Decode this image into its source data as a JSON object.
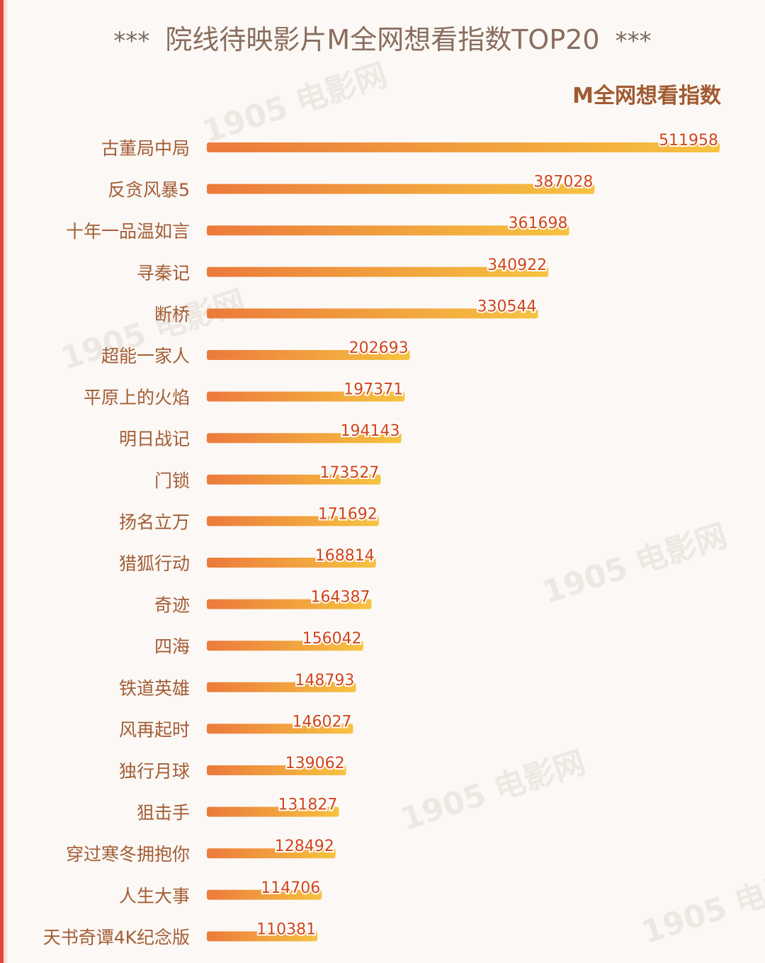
{
  "title": "院线待映影片M全网想看指数TOP20",
  "title_decor": "***",
  "colors": {
    "bar_start": "#ec7a3c",
    "bar_end": "#f6c340",
    "value_text": "#d0441a",
    "category_text": "#a35d35",
    "accent_edge": "#e2453a"
  },
  "chart_data": {
    "type": "bar",
    "orientation": "horizontal",
    "ylabel": "M全网想看指数",
    "categories": [
      "古董局中局",
      "反贪风暴5",
      "十年一品温如言",
      "寻秦记",
      "断桥",
      "超能一家人",
      "平原上的火焰",
      "明日战记",
      "门锁",
      "扬名立万",
      "猎狐行动",
      "奇迹",
      "四海",
      "铁道英雄",
      "风再起时",
      "独行月球",
      "狙击手",
      "穿过寒冬拥抱你",
      "人生大事",
      "天书奇谭4K纪念版"
    ],
    "values": [
      511958,
      387028,
      361698,
      340922,
      330544,
      202693,
      197371,
      194143,
      173527,
      171692,
      168814,
      164387,
      156042,
      148793,
      146027,
      139062,
      131827,
      128492,
      114706,
      110381
    ],
    "xlim": [
      0,
      511958
    ],
    "grid": false,
    "legend": "none"
  }
}
